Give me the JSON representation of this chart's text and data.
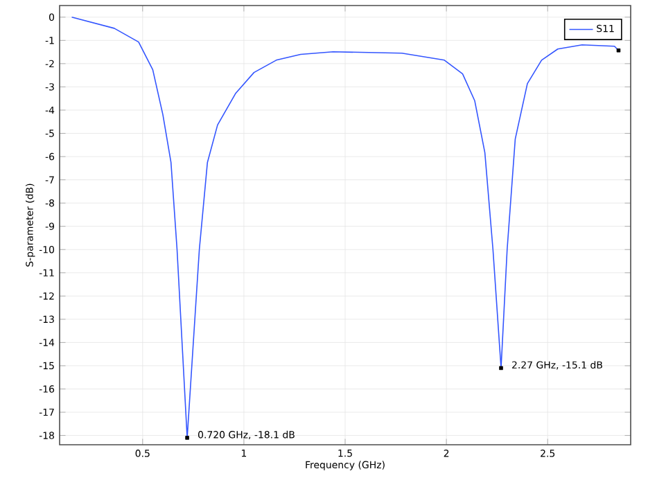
{
  "chart_data": {
    "type": "line",
    "xlabel": "Frequency (GHz)",
    "ylabel": "S-parameter (dB)",
    "xlim": [
      0.09,
      2.91
    ],
    "ylim": [
      -18.4,
      0.5
    ],
    "xticks": [
      0.5,
      1,
      1.5,
      2,
      2.5
    ],
    "yticks": [
      0,
      -1,
      -2,
      -3,
      -4,
      -5,
      -6,
      -7,
      -8,
      -9,
      -10,
      -11,
      -12,
      -13,
      -14,
      -15,
      -16,
      -17,
      -18
    ],
    "grid": true,
    "legend": "top right",
    "marker": "none",
    "line_style": "solid",
    "series": [
      {
        "name": "S11",
        "color": "#3355ff",
        "x": [
          0.15,
          0.36,
          0.48,
          0.55,
          0.6,
          0.64,
          0.67,
          0.72,
          0.78,
          0.82,
          0.87,
          0.96,
          1.05,
          1.16,
          1.28,
          1.44,
          1.78,
          1.99,
          2.08,
          2.14,
          2.19,
          2.23,
          2.27,
          2.3,
          2.34,
          2.4,
          2.47,
          2.55,
          2.67,
          2.83,
          2.85
        ],
        "values": [
          0,
          -0.48,
          -1.07,
          -2.26,
          -4.2,
          -6.25,
          -10,
          -18.1,
          -10,
          -6.25,
          -4.64,
          -3.27,
          -2.38,
          -1.85,
          -1.6,
          -1.49,
          -1.55,
          -1.85,
          -2.44,
          -3.6,
          -5.83,
          -10,
          -15.1,
          -10,
          -5.24,
          -2.86,
          -1.85,
          -1.37,
          -1.19,
          -1.25,
          -1.43
        ]
      },
      {
        "type": "scatter",
        "marker": "square",
        "color": "#000000",
        "x": [
          0.72,
          2.27,
          2.85
        ],
        "values": [
          -18.1,
          -15.1,
          -1.43
        ]
      }
    ],
    "annotations": [
      {
        "text": "0.720 GHz, -18.1 dB",
        "x": 0.72,
        "y": -18.1
      },
      {
        "text": "2.27 GHz, -15.1 dB",
        "x": 2.27,
        "y": -15.1
      }
    ]
  }
}
